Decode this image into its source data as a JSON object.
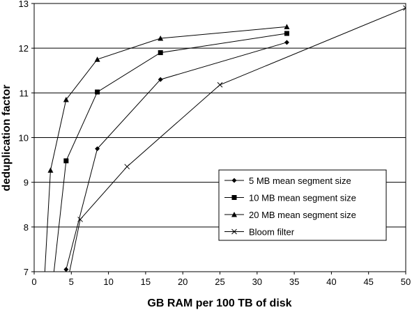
{
  "chart_data": {
    "type": "line",
    "title": "",
    "xlabel": "GB RAM per 100 TB of disk",
    "ylabel": "deduplication factor",
    "xlim": [
      0,
      50
    ],
    "ylim": [
      7,
      13
    ],
    "xticks": [
      0,
      5,
      10,
      15,
      20,
      25,
      30,
      35,
      40,
      45,
      50
    ],
    "yticks": [
      7,
      8,
      9,
      10,
      11,
      12,
      13
    ],
    "grid": "horizontal",
    "legend_position": "bottom-right",
    "series": [
      {
        "name": "5 MB mean segment size",
        "marker": "diamond",
        "x": [
          3.2,
          4.3,
          8.5,
          17.0,
          34.0
        ],
        "y": [
          6.3,
          7.05,
          9.75,
          11.3,
          12.13
        ]
      },
      {
        "name": "10 MB mean segment size",
        "marker": "square",
        "x": [
          2.2,
          4.3,
          8.5,
          17.0,
          34.0
        ],
        "y": [
          6.3,
          9.48,
          11.02,
          11.9,
          12.33
        ]
      },
      {
        "name": "20 MB mean segment size",
        "marker": "triangle",
        "x": [
          1.2,
          2.2,
          4.3,
          8.5,
          17.0,
          34.0
        ],
        "y": [
          6.3,
          9.27,
          10.85,
          11.75,
          12.22,
          12.48
        ]
      },
      {
        "name": "Bloom filter",
        "marker": "x",
        "x": [
          3.9,
          6.2,
          12.5,
          25.0,
          50.0
        ],
        "y": [
          6.3,
          8.17,
          9.35,
          11.18,
          12.9
        ]
      }
    ]
  }
}
